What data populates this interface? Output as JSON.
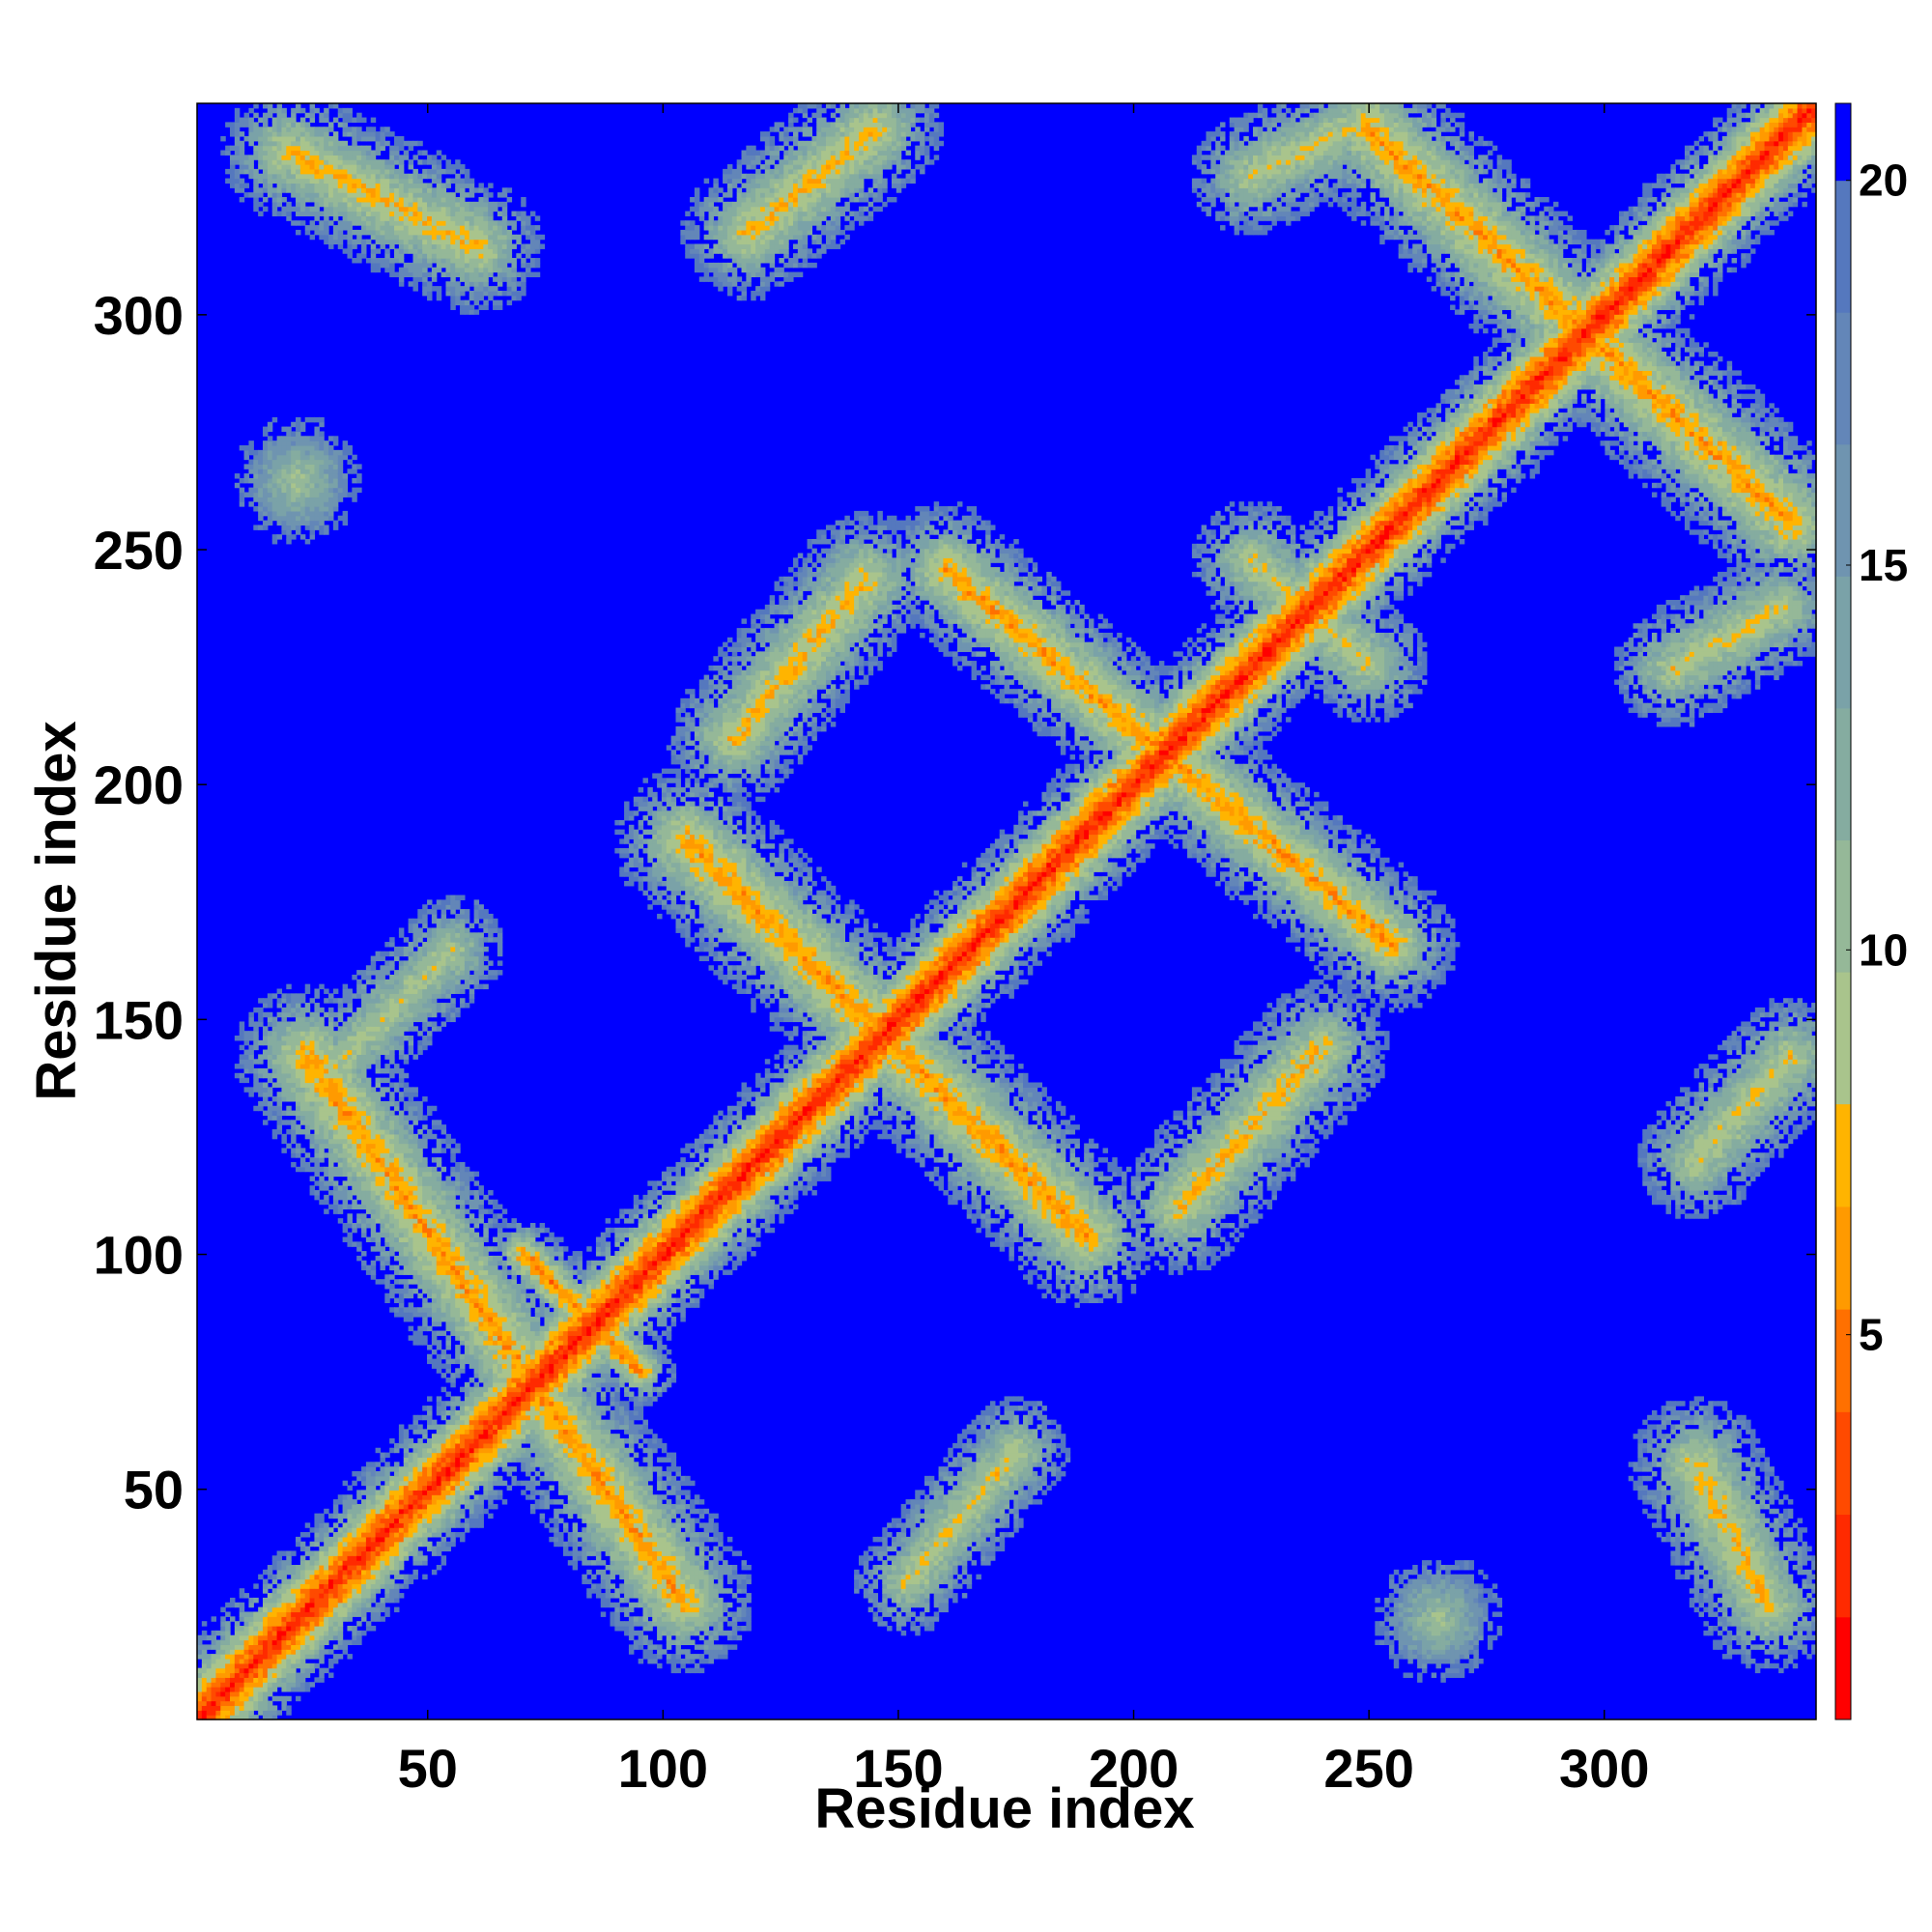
{
  "chart_data": {
    "type": "heatmap",
    "title": "",
    "xlabel": "Residue index",
    "ylabel": "Residue index",
    "xlim": [
      1,
      345
    ],
    "ylim": [
      1,
      345
    ],
    "x_ticks": [
      50,
      100,
      150,
      200,
      250,
      300
    ],
    "y_ticks": [
      50,
      100,
      150,
      200,
      250,
      300
    ],
    "colorbar": {
      "range": [
        0,
        21
      ],
      "ticks": [
        5,
        10,
        15,
        20
      ],
      "colors": [
        "#ff0000",
        "#ff2a00",
        "#ff4a00",
        "#ff7000",
        "#ff9a00",
        "#ffb400",
        "#a9c48c",
        "#95b898",
        "#85aca0",
        "#7aa2a8",
        "#6f94b0",
        "#6386b8",
        "#5578be",
        "#0000ff"
      ],
      "saturation_color": "#0000ff"
    },
    "cell_value_description": "pairwise residue distance (colour scale 0-21; blue = beyond cutoff)",
    "bands": [
      {
        "name": "diagonal",
        "x1": 1,
        "y1": 1,
        "x2": 345,
        "y2": 345,
        "width": 9,
        "peak": 1.5
      },
      {
        "name": "anti-diagonal-1",
        "x1": 24,
        "y1": 142,
        "x2": 104,
        "y2": 26,
        "width": 10,
        "peak": 6
      },
      {
        "name": "anti-diagonal-2",
        "x1": 105,
        "y1": 188,
        "x2": 190,
        "y2": 104,
        "width": 10,
        "peak": 6
      },
      {
        "name": "anti-diagonal-3",
        "x1": 160,
        "y1": 246,
        "x2": 255,
        "y2": 166,
        "width": 9,
        "peak": 6
      },
      {
        "name": "anti-diagonal-4",
        "x1": 250,
        "y1": 340,
        "x2": 340,
        "y2": 256,
        "width": 10,
        "peak": 6
      },
      {
        "name": "parallel-top-left",
        "x1": 20,
        "y1": 335,
        "x2": 60,
        "y2": 315,
        "width": 9,
        "peak": 7
      },
      {
        "name": "parallel-top-mid",
        "x1": 118,
        "y1": 318,
        "x2": 145,
        "y2": 340,
        "width": 9,
        "peak": 7
      },
      {
        "name": "parallel-top-right",
        "x1": 225,
        "y1": 330,
        "x2": 250,
        "y2": 342,
        "width": 8,
        "peak": 8
      },
      {
        "name": "parallel-mid",
        "x1": 115,
        "y1": 210,
        "x2": 143,
        "y2": 244,
        "width": 9,
        "peak": 7
      },
      {
        "name": "parallel-lower-mid",
        "x1": 210,
        "y1": 110,
        "x2": 240,
        "y2": 144,
        "width": 9,
        "peak": 7
      },
      {
        "name": "parallel-lower-left",
        "x1": 152,
        "y1": 30,
        "x2": 175,
        "y2": 58,
        "width": 7,
        "peak": 8
      },
      {
        "name": "right-lower-cluster",
        "x1": 320,
        "y1": 55,
        "x2": 335,
        "y2": 25,
        "width": 9,
        "peak": 7
      },
      {
        "name": "right-mid-cluster",
        "x1": 320,
        "y1": 120,
        "x2": 340,
        "y2": 142,
        "width": 8,
        "peak": 8
      },
      {
        "name": "right-upper-cluster",
        "x1": 315,
        "y1": 225,
        "x2": 338,
        "y2": 238,
        "width": 8,
        "peak": 8
      },
      {
        "name": "upper-diagonal-wing",
        "x1": 225,
        "y1": 248,
        "x2": 250,
        "y2": 226,
        "width": 8,
        "peak": 8
      },
      {
        "name": "left-upper-wing",
        "x1": 30,
        "y1": 140,
        "x2": 55,
        "y2": 165,
        "width": 7,
        "peak": 9
      },
      {
        "name": "lower-cross-wing",
        "x1": 70,
        "y1": 100,
        "x2": 95,
        "y2": 75,
        "width": 5,
        "peak": 5
      }
    ],
    "blobs": [
      {
        "name": "blob-left-upper",
        "x": 22,
        "y": 265,
        "r": 10,
        "peak": 9
      },
      {
        "name": "blob-bottom-mid",
        "x": 265,
        "y": 22,
        "r": 10,
        "peak": 9
      }
    ]
  }
}
